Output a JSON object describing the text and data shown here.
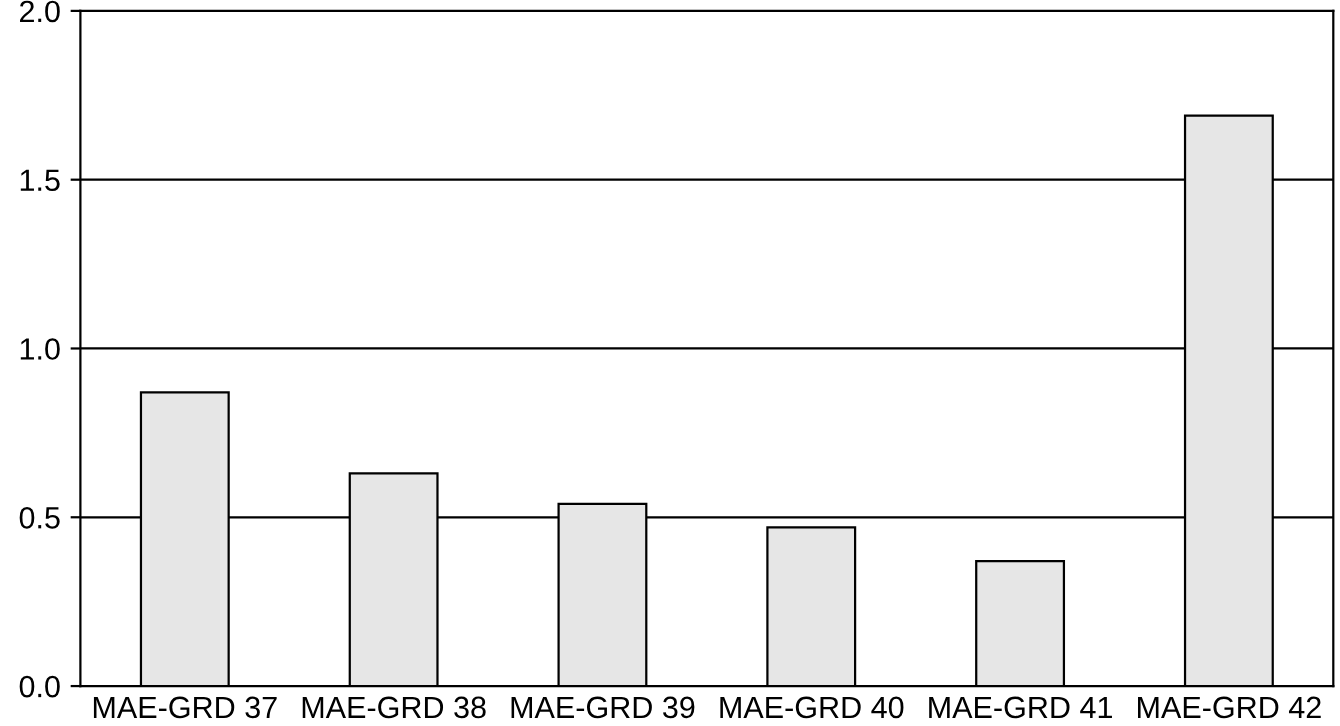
{
  "chart_data": {
    "type": "bar",
    "categories": [
      "MAE-GRD 37",
      "MAE-GRD 38",
      "MAE-GRD 39",
      "MAE-GRD 40",
      "MAE-GRD 41",
      "MAE-GRD 42"
    ],
    "values": [
      0.87,
      0.63,
      0.54,
      0.47,
      0.37,
      1.69
    ],
    "color": "#e6e6e6",
    "ylim": [
      0,
      2
    ],
    "yticks": [
      {
        "value": 0,
        "label": "0.0"
      },
      {
        "value": 0.5,
        "label": "0.5"
      },
      {
        "value": 1,
        "label": "1.0"
      },
      {
        "value": 1.5,
        "label": "1.5"
      },
      {
        "value": 2,
        "label": "2.0"
      }
    ],
    "grid": "y",
    "legend": false
  }
}
